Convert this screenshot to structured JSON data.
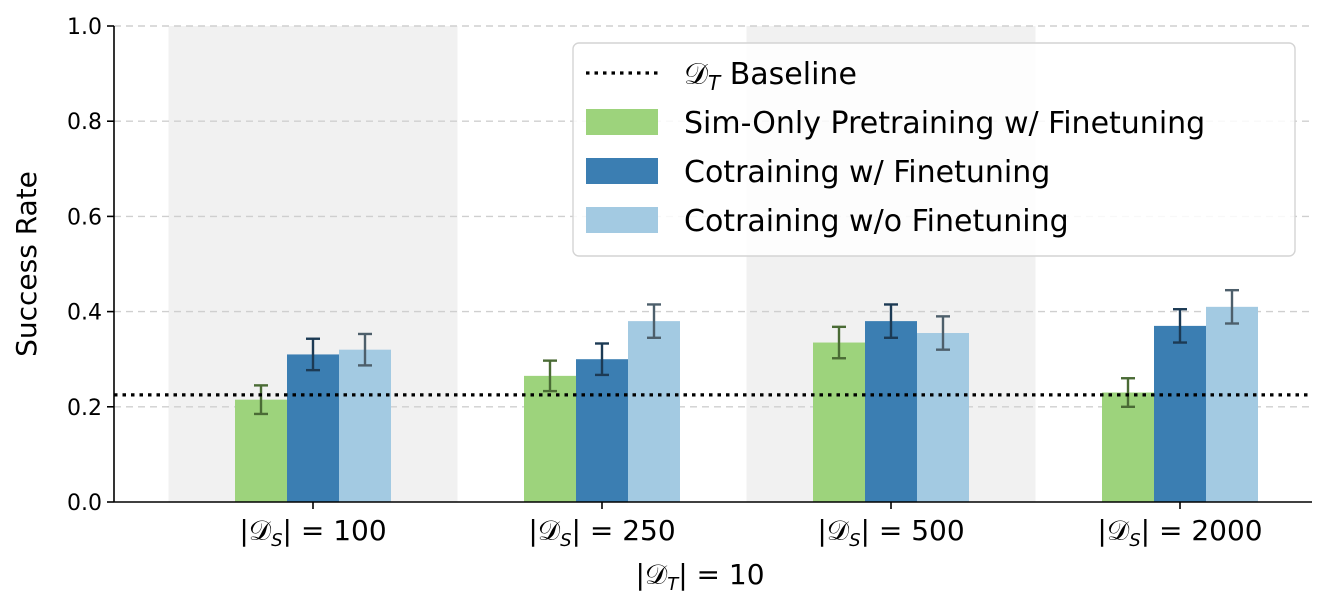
{
  "chart_data": {
    "type": "bar",
    "title": "",
    "ylabel": "Success Rate",
    "xlabel": "|𝒟_T| = 10",
    "ylim": [
      0,
      1.0
    ],
    "yticks": [
      "0.0",
      "0.2",
      "0.4",
      "0.6",
      "0.8",
      "1.0"
    ],
    "grid": true,
    "legend_position": "top-right",
    "categories": [
      {
        "prefix": "|𝒟",
        "sub": "S",
        "suffix": "| = 100"
      },
      {
        "prefix": "|𝒟",
        "sub": "S",
        "suffix": "| = 250"
      },
      {
        "prefix": "|𝒟",
        "sub": "S",
        "suffix": "| = 500"
      },
      {
        "prefix": "|𝒟",
        "sub": "S",
        "suffix": "| = 2000"
      }
    ],
    "shaded_groups": [
      0,
      2
    ],
    "baseline": {
      "name": "𝒟_T Baseline",
      "value": 0.225,
      "style": "dotted",
      "color": "#000000"
    },
    "series": [
      {
        "name": "Sim-Only Pretraining w/ Finetuning",
        "color": "#9dd37c",
        "err_color": "#4a6b35",
        "values": [
          0.215,
          0.265,
          0.335,
          0.23
        ],
        "errors": [
          0.03,
          0.032,
          0.033,
          0.03
        ]
      },
      {
        "name": "Cotraining w/ Finetuning",
        "color": "#3b7eb2",
        "err_color": "#1c3a54",
        "values": [
          0.31,
          0.3,
          0.38,
          0.37
        ],
        "errors": [
          0.033,
          0.033,
          0.035,
          0.035
        ]
      },
      {
        "name": "Cotraining w/o Finetuning",
        "color": "#a3cae2",
        "err_color": "#4d5f6b",
        "values": [
          0.32,
          0.38,
          0.355,
          0.41
        ],
        "errors": [
          0.033,
          0.035,
          0.035,
          0.035
        ]
      }
    ]
  }
}
